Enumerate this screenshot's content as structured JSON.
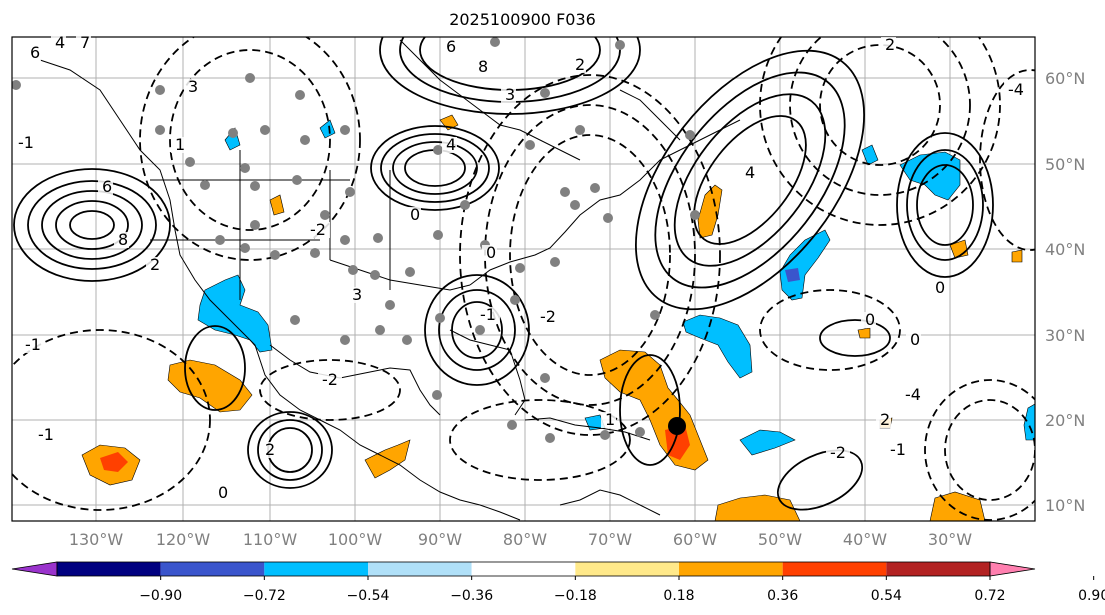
{
  "title": "2025100900 F036",
  "map": {
    "lon_labels": [
      "130°W",
      "120°W",
      "110°W",
      "100°W",
      "90°W",
      "80°W",
      "70°W",
      "60°W",
      "50°W",
      "40°W",
      "30°W"
    ],
    "lat_labels": [
      "60°N",
      "50°N",
      "40°N",
      "30°N",
      "20°N",
      "10°N"
    ],
    "contour_labels": [
      "6",
      "4",
      "7",
      "3",
      "2",
      "6",
      "8",
      "3",
      "2",
      "-2",
      "4",
      "6",
      "8",
      "0",
      "-1",
      "-1",
      "-2",
      "-4",
      "2",
      "4",
      "0",
      "2",
      "3",
      "0",
      "0",
      "-1",
      "0",
      "-1",
      "1",
      "2",
      "0",
      "-2",
      "1",
      "-4",
      "-2",
      "-1"
    ]
  },
  "colorbar": {
    "ticks": [
      "−0.90",
      "−0.72",
      "−0.54",
      "−0.36",
      "−0.18",
      "0.18",
      "0.36",
      "0.54",
      "0.72",
      "0.90"
    ],
    "colors": [
      "#9a33cc",
      "#000080",
      "#3a55cc",
      "#00bfff",
      "#b0e0f8",
      "#ffffff",
      "#ffe98a",
      "#ffa500",
      "#ff4000",
      "#b22222",
      "#ff80b0"
    ]
  }
}
